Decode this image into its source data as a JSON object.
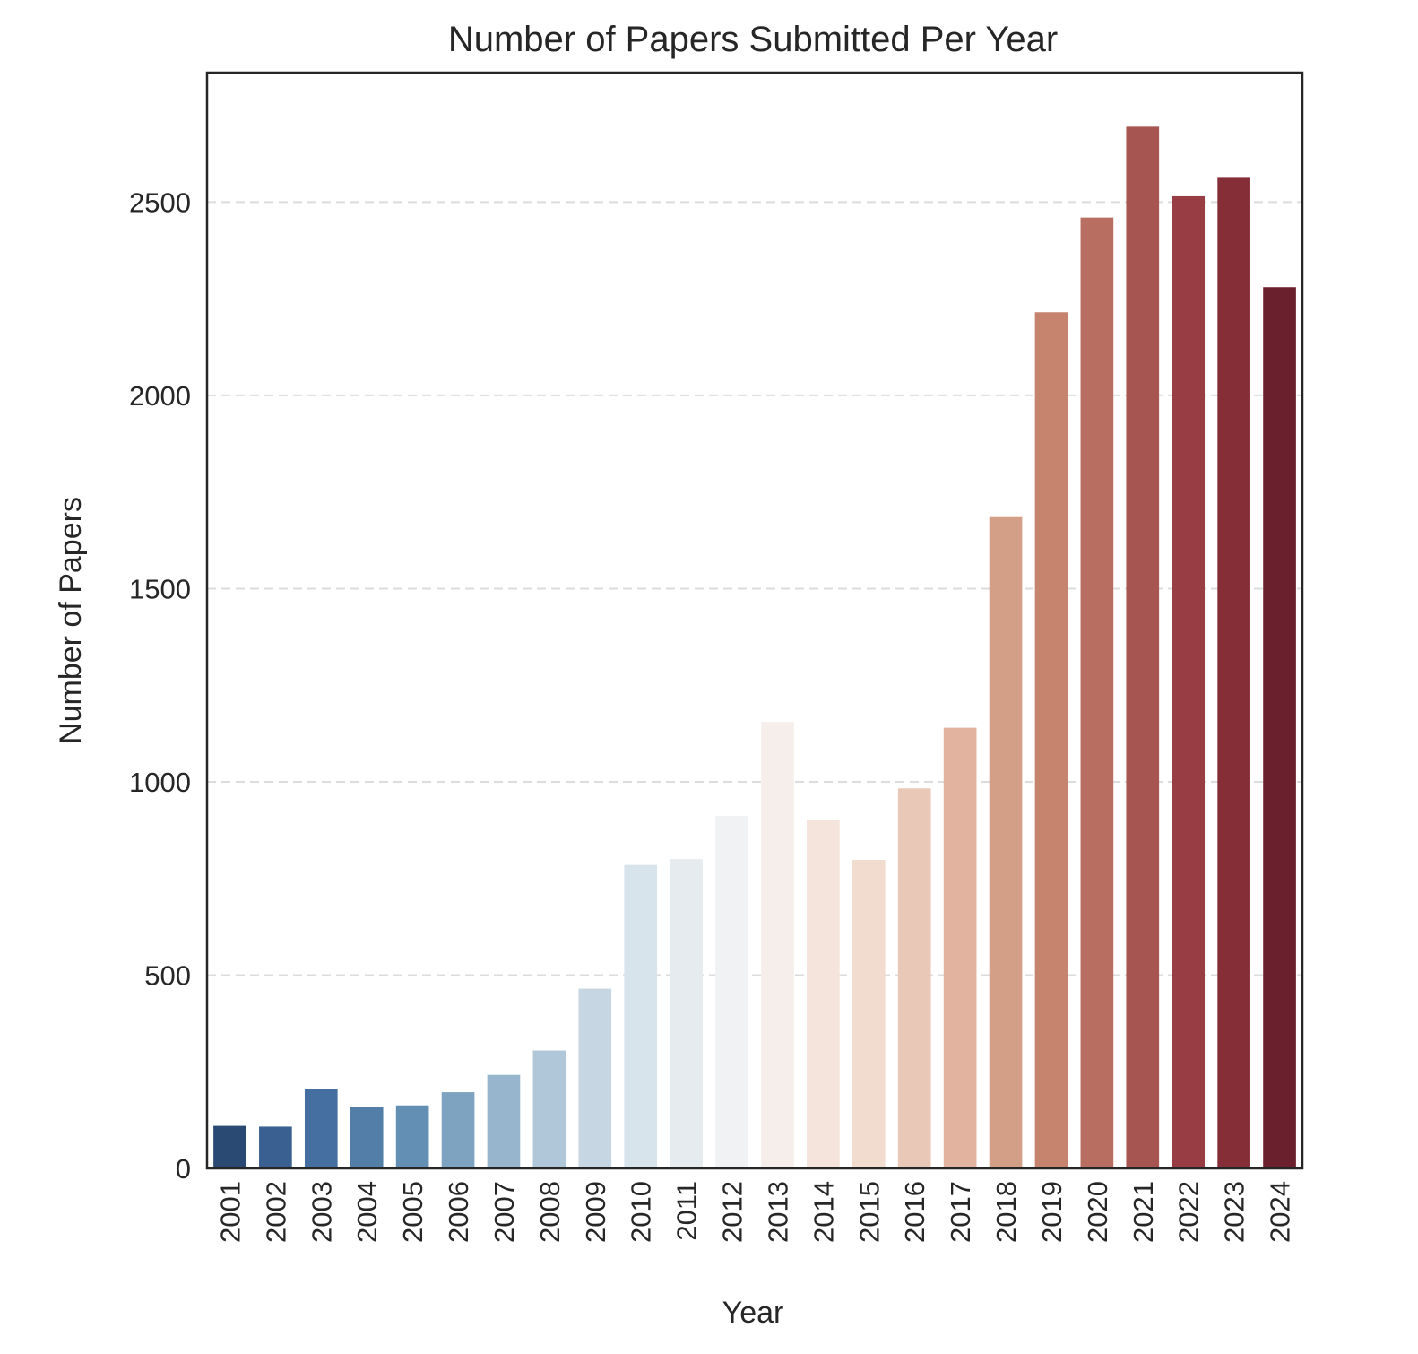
{
  "chart_data": {
    "type": "bar",
    "title": "Number of Papers Submitted Per Year",
    "xlabel": "Year",
    "ylabel": "Number of Papers",
    "categories": [
      "2001",
      "2002",
      "2003",
      "2004",
      "2005",
      "2006",
      "2007",
      "2008",
      "2009",
      "2010",
      "2011",
      "2012",
      "2013",
      "2014",
      "2015",
      "2016",
      "2017",
      "2018",
      "2019",
      "2020",
      "2021",
      "2022",
      "2023",
      "2024"
    ],
    "values": [
      110,
      108,
      205,
      158,
      163,
      197,
      242,
      305,
      465,
      785,
      800,
      912,
      1155,
      900,
      798,
      983,
      1140,
      1685,
      2215,
      2460,
      2695,
      2515,
      2565,
      2280
    ],
    "colors": [
      "#2b4a73",
      "#3a5f91",
      "#456fa1",
      "#537ea8",
      "#628fb3",
      "#7da3c1",
      "#97b6cd",
      "#afc7d8",
      "#c6d7e3",
      "#d8e4ec",
      "#e5ebef",
      "#f1f2f4",
      "#f5eeeb",
      "#f4e4dc",
      "#f1dccf",
      "#e9c8b8",
      "#e2b39f",
      "#d49f87",
      "#c6846f",
      "#b86e60",
      "#a75551",
      "#973d43",
      "#852e38",
      "#6b212d"
    ],
    "yticks": [
      0,
      500,
      1000,
      1500,
      2000,
      2500
    ],
    "ylim": [
      0,
      2835
    ],
    "grid": "y-dashed",
    "legend": "none"
  }
}
